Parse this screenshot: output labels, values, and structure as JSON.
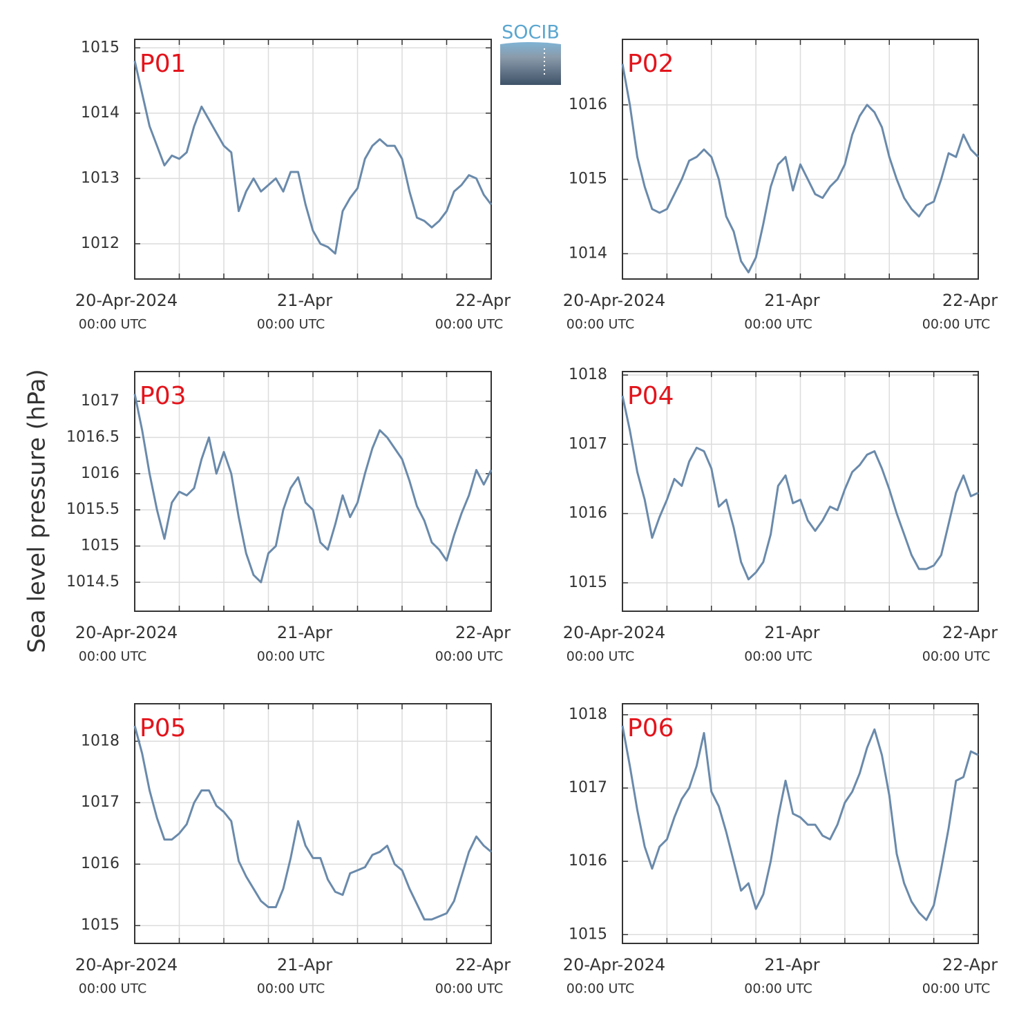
{
  "ylabel": "Sea level pressure (hPa)",
  "logo": "SOCIB",
  "chart_data": [
    {
      "type": "line",
      "title": "P01",
      "color": "#6a8aab",
      "x": [
        "2024-04-20 00:00",
        "2024-04-20 01:00",
        "2024-04-20 02:00",
        "2024-04-20 03:00",
        "2024-04-20 04:00",
        "2024-04-20 05:00",
        "2024-04-20 06:00",
        "2024-04-20 07:00",
        "2024-04-20 08:00",
        "2024-04-20 09:00",
        "2024-04-20 10:00",
        "2024-04-20 11:00",
        "2024-04-20 12:00",
        "2024-04-20 13:00",
        "2024-04-20 14:00",
        "2024-04-20 15:00",
        "2024-04-20 16:00",
        "2024-04-20 17:00",
        "2024-04-20 18:00",
        "2024-04-20 19:00",
        "2024-04-20 20:00",
        "2024-04-20 21:00",
        "2024-04-20 22:00",
        "2024-04-20 23:00",
        "2024-04-21 00:00",
        "2024-04-21 01:00",
        "2024-04-21 02:00",
        "2024-04-21 03:00",
        "2024-04-21 04:00",
        "2024-04-21 05:00",
        "2024-04-21 06:00",
        "2024-04-21 07:00",
        "2024-04-21 08:00",
        "2024-04-21 09:00",
        "2024-04-21 10:00",
        "2024-04-21 11:00",
        "2024-04-21 12:00",
        "2024-04-21 13:00",
        "2024-04-21 14:00",
        "2024-04-21 15:00",
        "2024-04-21 16:00",
        "2024-04-21 17:00",
        "2024-04-21 18:00",
        "2024-04-21 19:00",
        "2024-04-21 20:00",
        "2024-04-21 21:00",
        "2024-04-21 22:00",
        "2024-04-21 23:00",
        "2024-04-22 00:00"
      ],
      "values": [
        1014.8,
        1014.3,
        1013.8,
        1013.5,
        1013.2,
        1013.35,
        1013.3,
        1013.4,
        1013.8,
        1014.1,
        1013.9,
        1013.7,
        1013.5,
        1013.4,
        1012.5,
        1012.8,
        1013.0,
        1012.8,
        1012.9,
        1013.0,
        1012.8,
        1013.1,
        1013.1,
        1012.6,
        1012.2,
        1012.0,
        1011.95,
        1011.85,
        1012.5,
        1012.7,
        1012.85,
        1013.3,
        1013.5,
        1013.6,
        1013.5,
        1013.5,
        1013.3,
        1012.8,
        1012.4,
        1012.35,
        1012.25,
        1012.35,
        1012.5,
        1012.8,
        1012.9,
        1013.05,
        1013.0,
        1012.75,
        1012.6
      ],
      "xlim": [
        "2024-04-20 00:00",
        "2024-04-22 00:00"
      ],
      "xticks": [
        {
          "value": "2024-04-20 00:00",
          "label": "20-Apr-2024",
          "sublabel": "00:00 UTC"
        },
        {
          "value": "2024-04-20 06:00"
        },
        {
          "value": "2024-04-20 12:00"
        },
        {
          "value": "2024-04-20 18:00"
        },
        {
          "value": "2024-04-21 00:00",
          "label": "21-Apr",
          "sublabel": "00:00 UTC"
        },
        {
          "value": "2024-04-21 06:00"
        },
        {
          "value": "2024-04-21 12:00"
        },
        {
          "value": "2024-04-21 18:00"
        },
        {
          "value": "2024-04-22 00:00",
          "label": "22-Apr",
          "sublabel": "00:00 UTC"
        }
      ],
      "ylim": [
        1011.46,
        1015.13
      ],
      "yticks": [
        1012,
        1013,
        1014,
        1015
      ],
      "grid": true
    },
    {
      "type": "line",
      "title": "P02",
      "color": "#6a8aab",
      "x": [
        "2024-04-20 00:00",
        "2024-04-20 01:00",
        "2024-04-20 02:00",
        "2024-04-20 03:00",
        "2024-04-20 04:00",
        "2024-04-20 05:00",
        "2024-04-20 06:00",
        "2024-04-20 07:00",
        "2024-04-20 08:00",
        "2024-04-20 09:00",
        "2024-04-20 10:00",
        "2024-04-20 11:00",
        "2024-04-20 12:00",
        "2024-04-20 13:00",
        "2024-04-20 14:00",
        "2024-04-20 15:00",
        "2024-04-20 16:00",
        "2024-04-20 17:00",
        "2024-04-20 18:00",
        "2024-04-20 19:00",
        "2024-04-20 20:00",
        "2024-04-20 21:00",
        "2024-04-20 22:00",
        "2024-04-20 23:00",
        "2024-04-21 00:00",
        "2024-04-21 01:00",
        "2024-04-21 02:00",
        "2024-04-21 03:00",
        "2024-04-21 04:00",
        "2024-04-21 05:00",
        "2024-04-21 06:00",
        "2024-04-21 07:00",
        "2024-04-21 08:00",
        "2024-04-21 09:00",
        "2024-04-21 10:00",
        "2024-04-21 11:00",
        "2024-04-21 12:00",
        "2024-04-21 13:00",
        "2024-04-21 14:00",
        "2024-04-21 15:00",
        "2024-04-21 16:00",
        "2024-04-21 17:00",
        "2024-04-21 18:00",
        "2024-04-21 19:00",
        "2024-04-21 20:00",
        "2024-04-21 21:00",
        "2024-04-21 22:00",
        "2024-04-21 23:00",
        "2024-04-22 00:00"
      ],
      "values": [
        1016.55,
        1016.0,
        1015.3,
        1014.9,
        1014.6,
        1014.55,
        1014.6,
        1014.8,
        1015.0,
        1015.25,
        1015.3,
        1015.4,
        1015.3,
        1015.0,
        1014.5,
        1014.3,
        1013.9,
        1013.75,
        1013.95,
        1014.4,
        1014.9,
        1015.2,
        1015.3,
        1014.85,
        1015.2,
        1015.0,
        1014.8,
        1014.75,
        1014.9,
        1015.0,
        1015.2,
        1015.6,
        1015.85,
        1016.0,
        1015.9,
        1015.7,
        1015.3,
        1015.0,
        1014.75,
        1014.6,
        1014.5,
        1014.65,
        1014.7,
        1015.0,
        1015.35,
        1015.3,
        1015.6,
        1015.4,
        1015.3
      ],
      "xlim": [
        "2024-04-20 00:00",
        "2024-04-22 00:00"
      ],
      "xticks": [
        {
          "value": "2024-04-20 00:00",
          "label": "20-Apr-2024",
          "sublabel": "00:00 UTC"
        },
        {
          "value": "2024-04-20 06:00"
        },
        {
          "value": "2024-04-20 12:00"
        },
        {
          "value": "2024-04-20 18:00"
        },
        {
          "value": "2024-04-21 00:00",
          "label": "21-Apr",
          "sublabel": "00:00 UTC"
        },
        {
          "value": "2024-04-21 06:00"
        },
        {
          "value": "2024-04-21 12:00"
        },
        {
          "value": "2024-04-21 18:00"
        },
        {
          "value": "2024-04-22 00:00",
          "label": "22-Apr",
          "sublabel": "00:00 UTC"
        }
      ],
      "ylim": [
        1013.66,
        1016.88
      ],
      "yticks": [
        1014,
        1015,
        1016
      ],
      "grid": true
    },
    {
      "type": "line",
      "title": "P03",
      "color": "#6a8aab",
      "x": [
        "2024-04-20 00:00",
        "2024-04-20 01:00",
        "2024-04-20 02:00",
        "2024-04-20 03:00",
        "2024-04-20 04:00",
        "2024-04-20 05:00",
        "2024-04-20 06:00",
        "2024-04-20 07:00",
        "2024-04-20 08:00",
        "2024-04-20 09:00",
        "2024-04-20 10:00",
        "2024-04-20 11:00",
        "2024-04-20 12:00",
        "2024-04-20 13:00",
        "2024-04-20 14:00",
        "2024-04-20 15:00",
        "2024-04-20 16:00",
        "2024-04-20 17:00",
        "2024-04-20 18:00",
        "2024-04-20 19:00",
        "2024-04-20 20:00",
        "2024-04-20 21:00",
        "2024-04-20 22:00",
        "2024-04-20 23:00",
        "2024-04-21 00:00",
        "2024-04-21 01:00",
        "2024-04-21 02:00",
        "2024-04-21 03:00",
        "2024-04-21 04:00",
        "2024-04-21 05:00",
        "2024-04-21 06:00",
        "2024-04-21 07:00",
        "2024-04-21 08:00",
        "2024-04-21 09:00",
        "2024-04-21 10:00",
        "2024-04-21 11:00",
        "2024-04-21 12:00",
        "2024-04-21 13:00",
        "2024-04-21 14:00",
        "2024-04-21 15:00",
        "2024-04-21 16:00",
        "2024-04-21 17:00",
        "2024-04-21 18:00",
        "2024-04-21 19:00",
        "2024-04-21 20:00",
        "2024-04-21 21:00",
        "2024-04-21 22:00",
        "2024-04-21 23:00",
        "2024-04-22 00:00"
      ],
      "values": [
        1017.1,
        1016.6,
        1016.0,
        1015.5,
        1015.1,
        1015.6,
        1015.75,
        1015.7,
        1015.8,
        1016.2,
        1016.5,
        1016.0,
        1016.3,
        1016.0,
        1015.4,
        1014.9,
        1014.6,
        1014.5,
        1014.9,
        1015.0,
        1015.5,
        1015.8,
        1015.95,
        1015.6,
        1015.5,
        1015.05,
        1014.95,
        1015.3,
        1015.7,
        1015.4,
        1015.6,
        1016.0,
        1016.35,
        1016.6,
        1016.5,
        1016.35,
        1016.2,
        1015.9,
        1015.55,
        1015.35,
        1015.05,
        1014.95,
        1014.8,
        1015.15,
        1015.45,
        1015.7,
        1016.05,
        1015.85,
        1016.05
      ],
      "xlim": [
        "2024-04-20 00:00",
        "2024-04-22 00:00"
      ],
      "xticks": [
        {
          "value": "2024-04-20 00:00",
          "label": "20-Apr-2024",
          "sublabel": "00:00 UTC"
        },
        {
          "value": "2024-04-20 06:00"
        },
        {
          "value": "2024-04-20 12:00"
        },
        {
          "value": "2024-04-20 18:00"
        },
        {
          "value": "2024-04-21 00:00",
          "label": "21-Apr",
          "sublabel": "00:00 UTC"
        },
        {
          "value": "2024-04-21 06:00"
        },
        {
          "value": "2024-04-21 12:00"
        },
        {
          "value": "2024-04-21 18:00"
        },
        {
          "value": "2024-04-22 00:00",
          "label": "22-Apr",
          "sublabel": "00:00 UTC"
        }
      ],
      "ylim": [
        1014.1,
        1017.41
      ],
      "yticks": [
        1014.5,
        1015,
        1015.5,
        1016,
        1016.5,
        1017
      ],
      "grid": true
    },
    {
      "type": "line",
      "title": "P04",
      "color": "#6a8aab",
      "x": [
        "2024-04-20 00:00",
        "2024-04-20 01:00",
        "2024-04-20 02:00",
        "2024-04-20 03:00",
        "2024-04-20 04:00",
        "2024-04-20 05:00",
        "2024-04-20 06:00",
        "2024-04-20 07:00",
        "2024-04-20 08:00",
        "2024-04-20 09:00",
        "2024-04-20 10:00",
        "2024-04-20 11:00",
        "2024-04-20 12:00",
        "2024-04-20 13:00",
        "2024-04-20 14:00",
        "2024-04-20 15:00",
        "2024-04-20 16:00",
        "2024-04-20 17:00",
        "2024-04-20 18:00",
        "2024-04-20 19:00",
        "2024-04-20 20:00",
        "2024-04-20 21:00",
        "2024-04-20 22:00",
        "2024-04-20 23:00",
        "2024-04-21 00:00",
        "2024-04-21 01:00",
        "2024-04-21 02:00",
        "2024-04-21 03:00",
        "2024-04-21 04:00",
        "2024-04-21 05:00",
        "2024-04-21 06:00",
        "2024-04-21 07:00",
        "2024-04-21 08:00",
        "2024-04-21 09:00",
        "2024-04-21 10:00",
        "2024-04-21 11:00",
        "2024-04-21 12:00",
        "2024-04-21 13:00",
        "2024-04-21 14:00",
        "2024-04-21 15:00",
        "2024-04-21 16:00",
        "2024-04-21 17:00",
        "2024-04-21 18:00",
        "2024-04-21 19:00",
        "2024-04-21 20:00",
        "2024-04-21 21:00",
        "2024-04-21 22:00",
        "2024-04-21 23:00",
        "2024-04-22 00:00"
      ],
      "values": [
        1017.7,
        1017.2,
        1016.6,
        1016.2,
        1015.65,
        1015.95,
        1016.2,
        1016.5,
        1016.4,
        1016.75,
        1016.95,
        1016.9,
        1016.65,
        1016.1,
        1016.2,
        1015.8,
        1015.3,
        1015.05,
        1015.15,
        1015.3,
        1015.7,
        1016.4,
        1016.55,
        1016.15,
        1016.2,
        1015.9,
        1015.75,
        1015.9,
        1016.1,
        1016.05,
        1016.35,
        1016.6,
        1016.7,
        1016.85,
        1016.9,
        1016.65,
        1016.35,
        1016.0,
        1015.7,
        1015.4,
        1015.2,
        1015.2,
        1015.25,
        1015.4,
        1015.85,
        1016.3,
        1016.55,
        1016.25,
        1016.3
      ],
      "xlim": [
        "2024-04-20 00:00",
        "2024-04-22 00:00"
      ],
      "xticks": [
        {
          "value": "2024-04-20 00:00",
          "label": "20-Apr-2024",
          "sublabel": "00:00 UTC"
        },
        {
          "value": "2024-04-20 06:00"
        },
        {
          "value": "2024-04-20 12:00"
        },
        {
          "value": "2024-04-20 18:00"
        },
        {
          "value": "2024-04-21 00:00",
          "label": "21-Apr",
          "sublabel": "00:00 UTC"
        },
        {
          "value": "2024-04-21 06:00"
        },
        {
          "value": "2024-04-21 12:00"
        },
        {
          "value": "2024-04-21 18:00"
        },
        {
          "value": "2024-04-22 00:00",
          "label": "22-Apr",
          "sublabel": "00:00 UTC"
        }
      ],
      "ylim": [
        1014.59,
        1018.05
      ],
      "yticks": [
        1015,
        1016,
        1017,
        1018
      ],
      "grid": true
    },
    {
      "type": "line",
      "title": "P05",
      "color": "#6a8aab",
      "x": [
        "2024-04-20 00:00",
        "2024-04-20 01:00",
        "2024-04-20 02:00",
        "2024-04-20 03:00",
        "2024-04-20 04:00",
        "2024-04-20 05:00",
        "2024-04-20 06:00",
        "2024-04-20 07:00",
        "2024-04-20 08:00",
        "2024-04-20 09:00",
        "2024-04-20 10:00",
        "2024-04-20 11:00",
        "2024-04-20 12:00",
        "2024-04-20 13:00",
        "2024-04-20 14:00",
        "2024-04-20 15:00",
        "2024-04-20 16:00",
        "2024-04-20 17:00",
        "2024-04-20 18:00",
        "2024-04-20 19:00",
        "2024-04-20 20:00",
        "2024-04-20 21:00",
        "2024-04-20 22:00",
        "2024-04-20 23:00",
        "2024-04-21 00:00",
        "2024-04-21 01:00",
        "2024-04-21 02:00",
        "2024-04-21 03:00",
        "2024-04-21 04:00",
        "2024-04-21 05:00",
        "2024-04-21 06:00",
        "2024-04-21 07:00",
        "2024-04-21 08:00",
        "2024-04-21 09:00",
        "2024-04-21 10:00",
        "2024-04-21 11:00",
        "2024-04-21 12:00",
        "2024-04-21 13:00",
        "2024-04-21 14:00",
        "2024-04-21 15:00",
        "2024-04-21 16:00",
        "2024-04-21 17:00",
        "2024-04-21 18:00",
        "2024-04-21 19:00",
        "2024-04-21 20:00",
        "2024-04-21 21:00",
        "2024-04-21 22:00",
        "2024-04-21 23:00",
        "2024-04-22 00:00"
      ],
      "values": [
        1018.25,
        1017.8,
        1017.2,
        1016.75,
        1016.4,
        1016.4,
        1016.5,
        1016.65,
        1017.0,
        1017.2,
        1017.2,
        1016.95,
        1016.85,
        1016.7,
        1016.05,
        1015.8,
        1015.6,
        1015.4,
        1015.3,
        1015.3,
        1015.6,
        1016.1,
        1016.7,
        1016.3,
        1016.1,
        1016.1,
        1015.75,
        1015.55,
        1015.5,
        1015.85,
        1015.9,
        1015.95,
        1016.15,
        1016.2,
        1016.3,
        1016.0,
        1015.9,
        1015.6,
        1015.35,
        1015.1,
        1015.1,
        1015.15,
        1015.2,
        1015.4,
        1015.8,
        1016.2,
        1016.45,
        1016.3,
        1016.2
      ],
      "xlim": [
        "2024-04-20 00:00",
        "2024-04-22 00:00"
      ],
      "xticks": [
        {
          "value": "2024-04-20 00:00",
          "label": "20-Apr-2024",
          "sublabel": "00:00 UTC"
        },
        {
          "value": "2024-04-20 06:00"
        },
        {
          "value": "2024-04-20 12:00"
        },
        {
          "value": "2024-04-20 18:00"
        },
        {
          "value": "2024-04-21 00:00",
          "label": "21-Apr",
          "sublabel": "00:00 UTC"
        },
        {
          "value": "2024-04-21 06:00"
        },
        {
          "value": "2024-04-21 12:00"
        },
        {
          "value": "2024-04-21 18:00"
        },
        {
          "value": "2024-04-22 00:00",
          "label": "22-Apr",
          "sublabel": "00:00 UTC"
        }
      ],
      "ylim": [
        1014.71,
        1018.61
      ],
      "yticks": [
        1015,
        1016,
        1017,
        1018
      ],
      "grid": true
    },
    {
      "type": "line",
      "title": "P06",
      "color": "#6a8aab",
      "x": [
        "2024-04-20 00:00",
        "2024-04-20 01:00",
        "2024-04-20 02:00",
        "2024-04-20 03:00",
        "2024-04-20 04:00",
        "2024-04-20 05:00",
        "2024-04-20 06:00",
        "2024-04-20 07:00",
        "2024-04-20 08:00",
        "2024-04-20 09:00",
        "2024-04-20 10:00",
        "2024-04-20 11:00",
        "2024-04-20 12:00",
        "2024-04-20 13:00",
        "2024-04-20 14:00",
        "2024-04-20 15:00",
        "2024-04-20 16:00",
        "2024-04-20 17:00",
        "2024-04-20 18:00",
        "2024-04-20 19:00",
        "2024-04-20 20:00",
        "2024-04-20 21:00",
        "2024-04-20 22:00",
        "2024-04-20 23:00",
        "2024-04-21 00:00",
        "2024-04-21 01:00",
        "2024-04-21 02:00",
        "2024-04-21 03:00",
        "2024-04-21 04:00",
        "2024-04-21 05:00",
        "2024-04-21 06:00",
        "2024-04-21 07:00",
        "2024-04-21 08:00",
        "2024-04-21 09:00",
        "2024-04-21 10:00",
        "2024-04-21 11:00",
        "2024-04-21 12:00",
        "2024-04-21 13:00",
        "2024-04-21 14:00",
        "2024-04-21 15:00",
        "2024-04-21 16:00",
        "2024-04-21 17:00",
        "2024-04-21 18:00",
        "2024-04-21 19:00",
        "2024-04-21 20:00",
        "2024-04-21 21:00",
        "2024-04-21 22:00",
        "2024-04-21 23:00",
        "2024-04-22 00:00"
      ],
      "values": [
        1017.85,
        1017.3,
        1016.7,
        1016.2,
        1015.9,
        1016.2,
        1016.3,
        1016.6,
        1016.85,
        1017.0,
        1017.3,
        1017.75,
        1016.95,
        1016.75,
        1016.4,
        1016.0,
        1015.6,
        1015.7,
        1015.35,
        1015.55,
        1016.0,
        1016.6,
        1017.1,
        1016.65,
        1016.6,
        1016.5,
        1016.5,
        1016.35,
        1016.3,
        1016.5,
        1016.8,
        1016.95,
        1017.2,
        1017.55,
        1017.8,
        1017.45,
        1016.9,
        1016.1,
        1015.7,
        1015.45,
        1015.3,
        1015.2,
        1015.4,
        1015.9,
        1016.45,
        1017.1,
        1017.15,
        1017.5,
        1017.45
      ],
      "xlim": [
        "2024-04-20 00:00",
        "2024-04-22 00:00"
      ],
      "xticks": [
        {
          "value": "2024-04-20 00:00",
          "label": "20-Apr-2024",
          "sublabel": "00:00 UTC"
        },
        {
          "value": "2024-04-20 06:00"
        },
        {
          "value": "2024-04-20 12:00"
        },
        {
          "value": "2024-04-20 18:00"
        },
        {
          "value": "2024-04-21 00:00",
          "label": "21-Apr",
          "sublabel": "00:00 UTC"
        },
        {
          "value": "2024-04-21 06:00"
        },
        {
          "value": "2024-04-21 12:00"
        },
        {
          "value": "2024-04-21 18:00"
        },
        {
          "value": "2024-04-22 00:00",
          "label": "22-Apr",
          "sublabel": "00:00 UTC"
        }
      ],
      "ylim": [
        1014.88,
        1018.15
      ],
      "yticks": [
        1015,
        1016,
        1017,
        1018
      ],
      "grid": true
    }
  ]
}
